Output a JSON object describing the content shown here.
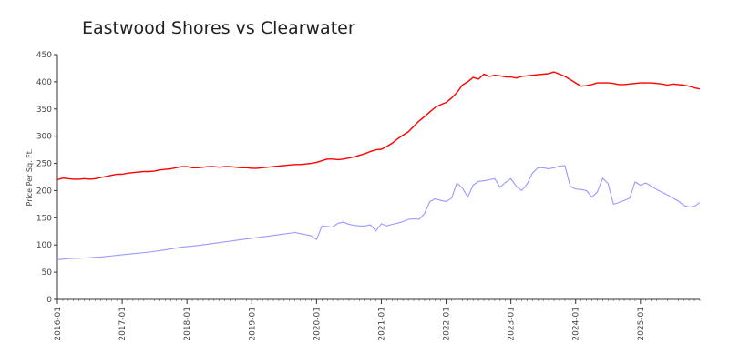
{
  "chart_data": {
    "type": "line",
    "title": "Eastwood Shores vs Clearwater",
    "ylabel": "Price Per Sq. Ft.",
    "xlabel": "",
    "xlim": [
      "2016-01",
      "2025-12"
    ],
    "ylim": [
      0,
      450
    ],
    "yticks": [
      0,
      50,
      100,
      150,
      200,
      250,
      300,
      350,
      400,
      450
    ],
    "xticks": [
      "2016-01",
      "2017-01",
      "2018-01",
      "2019-01",
      "2020-01",
      "2021-01",
      "2022-01",
      "2023-01",
      "2024-01",
      "2025-01"
    ],
    "grid": false,
    "legend": "none",
    "series": [
      {
        "color": "#ff0000",
        "points": [
          [
            "2016-01",
            220
          ],
          [
            "2016-02",
            223
          ],
          [
            "2016-03",
            222
          ],
          [
            "2016-04",
            221
          ],
          [
            "2016-05",
            221
          ],
          [
            "2016-06",
            222
          ],
          [
            "2016-07",
            221
          ],
          [
            "2016-08",
            222
          ],
          [
            "2016-09",
            224
          ],
          [
            "2016-10",
            226
          ],
          [
            "2016-11",
            228
          ],
          [
            "2016-12",
            230
          ],
          [
            "2017-01",
            230
          ],
          [
            "2017-02",
            232
          ],
          [
            "2017-03",
            233
          ],
          [
            "2017-04",
            234
          ],
          [
            "2017-05",
            235
          ],
          [
            "2017-06",
            235
          ],
          [
            "2017-07",
            236
          ],
          [
            "2017-08",
            238
          ],
          [
            "2017-09",
            239
          ],
          [
            "2017-10",
            240
          ],
          [
            "2017-11",
            242
          ],
          [
            "2017-12",
            244
          ],
          [
            "2018-01",
            244
          ],
          [
            "2018-02",
            242
          ],
          [
            "2018-03",
            242
          ],
          [
            "2018-04",
            243
          ],
          [
            "2018-05",
            244
          ],
          [
            "2018-06",
            244
          ],
          [
            "2018-07",
            243
          ],
          [
            "2018-08",
            244
          ],
          [
            "2018-09",
            244
          ],
          [
            "2018-10",
            243
          ],
          [
            "2018-11",
            242
          ],
          [
            "2018-12",
            242
          ],
          [
            "2019-01",
            241
          ],
          [
            "2019-02",
            241
          ],
          [
            "2019-03",
            242
          ],
          [
            "2019-04",
            243
          ],
          [
            "2019-05",
            244
          ],
          [
            "2019-06",
            245
          ],
          [
            "2019-07",
            246
          ],
          [
            "2019-08",
            247
          ],
          [
            "2019-09",
            248
          ],
          [
            "2019-10",
            248
          ],
          [
            "2019-11",
            249
          ],
          [
            "2019-12",
            250
          ],
          [
            "2020-01",
            252
          ],
          [
            "2020-02",
            255
          ],
          [
            "2020-03",
            258
          ],
          [
            "2020-04",
            258
          ],
          [
            "2020-05",
            257
          ],
          [
            "2020-06",
            258
          ],
          [
            "2020-07",
            260
          ],
          [
            "2020-08",
            262
          ],
          [
            "2020-09",
            265
          ],
          [
            "2020-10",
            268
          ],
          [
            "2020-11",
            272
          ],
          [
            "2020-12",
            275
          ],
          [
            "2021-01",
            276
          ],
          [
            "2021-02",
            281
          ],
          [
            "2021-03",
            287
          ],
          [
            "2021-04",
            295
          ],
          [
            "2021-05",
            302
          ],
          [
            "2021-06",
            308
          ],
          [
            "2021-07",
            318
          ],
          [
            "2021-08",
            328
          ],
          [
            "2021-09",
            336
          ],
          [
            "2021-10",
            345
          ],
          [
            "2021-11",
            353
          ],
          [
            "2021-12",
            358
          ],
          [
            "2022-01",
            362
          ],
          [
            "2022-02",
            370
          ],
          [
            "2022-03",
            380
          ],
          [
            "2022-04",
            394
          ],
          [
            "2022-05",
            400
          ],
          [
            "2022-06",
            408
          ],
          [
            "2022-07",
            405
          ],
          [
            "2022-08",
            414
          ],
          [
            "2022-09",
            410
          ],
          [
            "2022-10",
            412
          ],
          [
            "2022-11",
            411
          ],
          [
            "2022-12",
            409
          ],
          [
            "2023-01",
            409
          ],
          [
            "2023-02",
            407
          ],
          [
            "2023-03",
            410
          ],
          [
            "2023-04",
            411
          ],
          [
            "2023-05",
            412
          ],
          [
            "2023-06",
            413
          ],
          [
            "2023-07",
            414
          ],
          [
            "2023-08",
            415
          ],
          [
            "2023-09",
            418
          ],
          [
            "2023-10",
            414
          ],
          [
            "2023-11",
            410
          ],
          [
            "2023-12",
            404
          ],
          [
            "2024-01",
            398
          ],
          [
            "2024-02",
            392
          ],
          [
            "2024-03",
            393
          ],
          [
            "2024-04",
            395
          ],
          [
            "2024-05",
            398
          ],
          [
            "2024-06",
            398
          ],
          [
            "2024-07",
            398
          ],
          [
            "2024-08",
            397
          ],
          [
            "2024-09",
            395
          ],
          [
            "2024-10",
            395
          ],
          [
            "2024-11",
            396
          ],
          [
            "2024-12",
            397
          ],
          [
            "2025-01",
            398
          ],
          [
            "2025-02",
            398
          ],
          [
            "2025-03",
            398
          ],
          [
            "2025-04",
            397
          ],
          [
            "2025-05",
            396
          ],
          [
            "2025-06",
            394
          ],
          [
            "2025-07",
            396
          ],
          [
            "2025-08",
            395
          ],
          [
            "2025-09",
            394
          ],
          [
            "2025-10",
            392
          ],
          [
            "2025-11",
            389
          ],
          [
            "2025-12",
            387
          ]
        ]
      },
      {
        "color": "#9999ff",
        "points": [
          [
            "2016-01",
            73
          ],
          [
            "2016-03",
            75
          ],
          [
            "2016-06",
            76
          ],
          [
            "2016-09",
            78
          ],
          [
            "2016-12",
            81
          ],
          [
            "2017-03",
            84
          ],
          [
            "2017-06",
            87
          ],
          [
            "2017-09",
            91
          ],
          [
            "2017-12",
            96
          ],
          [
            "2018-03",
            99
          ],
          [
            "2018-06",
            103
          ],
          [
            "2018-09",
            107
          ],
          [
            "2018-12",
            111
          ],
          [
            "2019-03",
            115
          ],
          [
            "2019-06",
            119
          ],
          [
            "2019-09",
            123
          ],
          [
            "2019-10",
            121
          ],
          [
            "2019-11",
            119
          ],
          [
            "2019-12",
            117
          ],
          [
            "2020-01",
            110
          ],
          [
            "2020-02",
            135
          ],
          [
            "2020-03",
            134
          ],
          [
            "2020-04",
            133
          ],
          [
            "2020-05",
            140
          ],
          [
            "2020-06",
            142
          ],
          [
            "2020-07",
            138
          ],
          [
            "2020-08",
            136
          ],
          [
            "2020-09",
            135
          ],
          [
            "2020-10",
            135
          ],
          [
            "2020-11",
            137
          ],
          [
            "2020-12",
            126
          ],
          [
            "2021-01",
            139
          ],
          [
            "2021-02",
            135
          ],
          [
            "2021-03",
            138
          ],
          [
            "2021-04",
            140
          ],
          [
            "2021-05",
            143
          ],
          [
            "2021-06",
            147
          ],
          [
            "2021-07",
            148
          ],
          [
            "2021-08",
            147
          ],
          [
            "2021-09",
            158
          ],
          [
            "2021-10",
            180
          ],
          [
            "2021-11",
            185
          ],
          [
            "2021-12",
            182
          ],
          [
            "2022-01",
            180
          ],
          [
            "2022-02",
            186
          ],
          [
            "2022-03",
            214
          ],
          [
            "2022-04",
            205
          ],
          [
            "2022-05",
            188
          ],
          [
            "2022-06",
            210
          ],
          [
            "2022-07",
            217
          ],
          [
            "2022-08",
            218
          ],
          [
            "2022-09",
            220
          ],
          [
            "2022-10",
            222
          ],
          [
            "2022-11",
            206
          ],
          [
            "2022-12",
            215
          ],
          [
            "2023-01",
            222
          ],
          [
            "2023-02",
            208
          ],
          [
            "2023-03",
            200
          ],
          [
            "2023-04",
            212
          ],
          [
            "2023-05",
            232
          ],
          [
            "2023-06",
            242
          ],
          [
            "2023-07",
            242
          ],
          [
            "2023-08",
            240
          ],
          [
            "2023-09",
            242
          ],
          [
            "2023-10",
            245
          ],
          [
            "2023-11",
            246
          ],
          [
            "2023-12",
            208
          ],
          [
            "2024-01",
            203
          ],
          [
            "2024-02",
            202
          ],
          [
            "2024-03",
            200
          ],
          [
            "2024-04",
            188
          ],
          [
            "2024-05",
            197
          ],
          [
            "2024-06",
            223
          ],
          [
            "2024-07",
            213
          ],
          [
            "2024-08",
            175
          ],
          [
            "2024-09",
            178
          ],
          [
            "2024-10",
            182
          ],
          [
            "2024-11",
            186
          ],
          [
            "2024-12",
            216
          ],
          [
            "2025-01",
            210
          ],
          [
            "2025-02",
            214
          ],
          [
            "2025-03",
            208
          ],
          [
            "2025-04",
            202
          ],
          [
            "2025-05",
            197
          ],
          [
            "2025-06",
            192
          ],
          [
            "2025-07",
            186
          ],
          [
            "2025-08",
            181
          ],
          [
            "2025-09",
            173
          ],
          [
            "2025-10",
            170
          ],
          [
            "2025-11",
            171
          ],
          [
            "2025-12",
            178
          ]
        ]
      }
    ]
  }
}
